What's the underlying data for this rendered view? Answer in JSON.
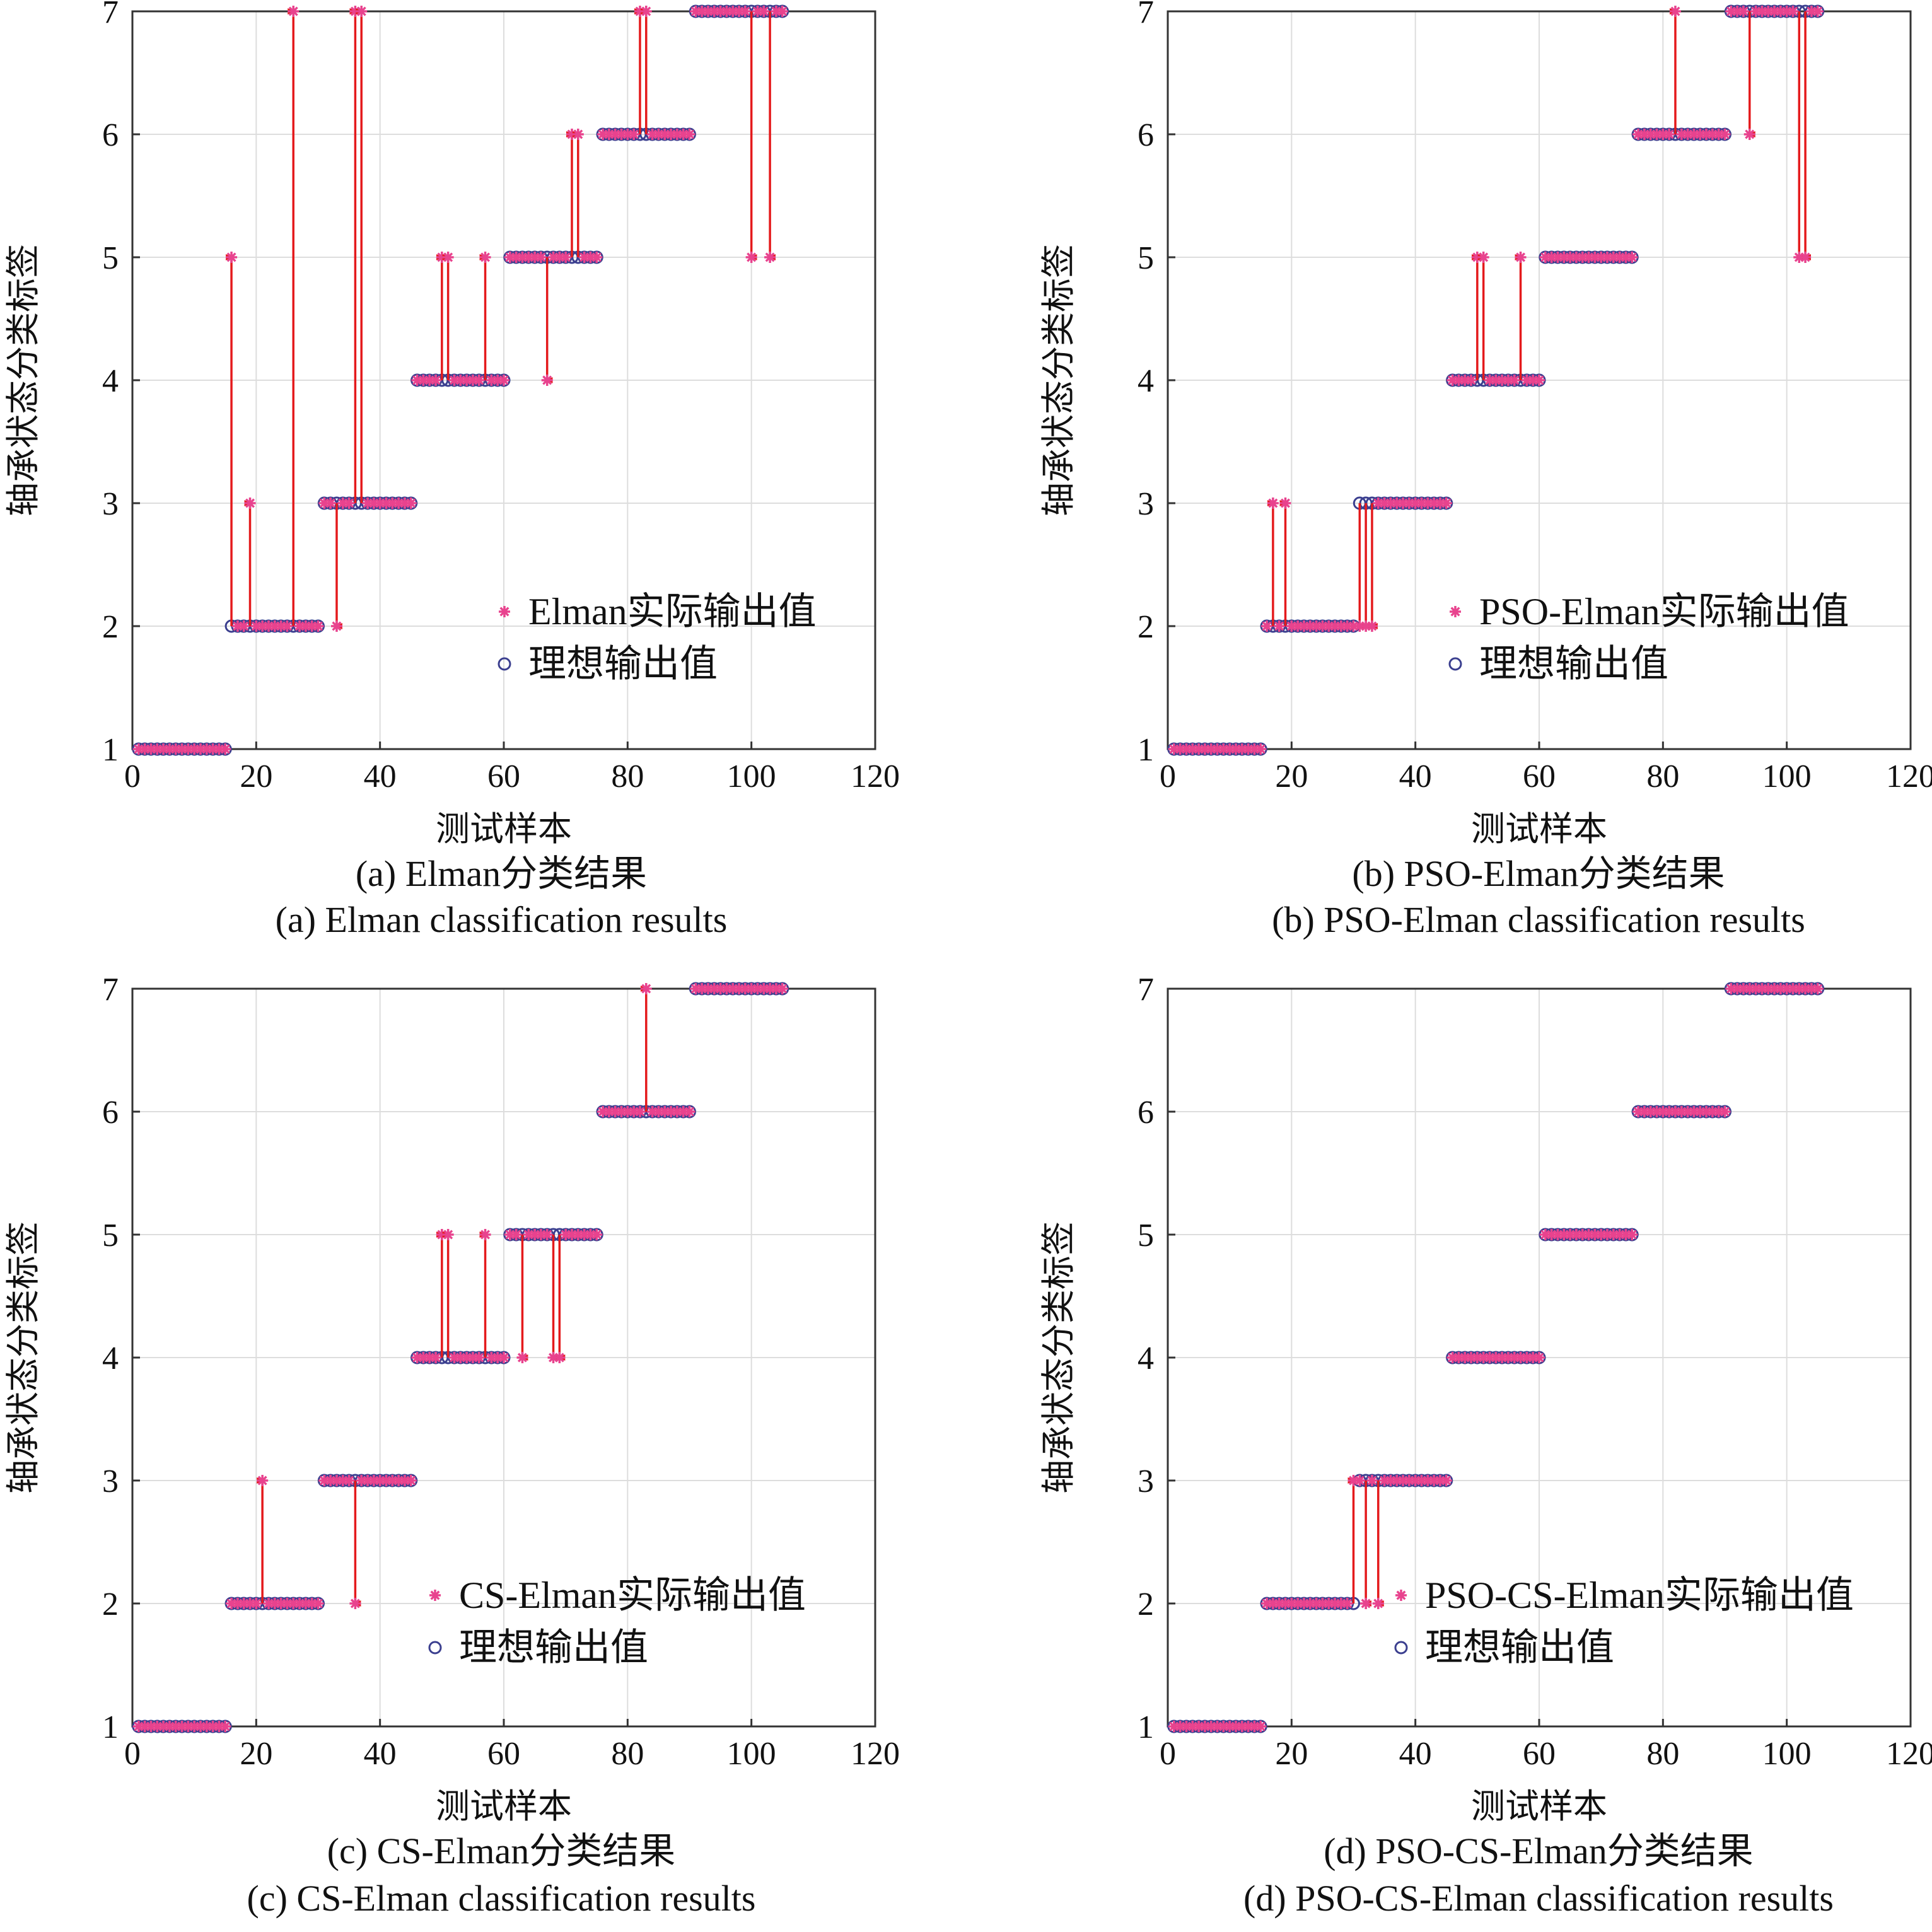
{
  "chart_data": [
    {
      "type": "scatter",
      "panel": "a",
      "xlabel": "测试样本",
      "ylabel": "轴承状态分类标签",
      "xlim": [
        0,
        120
      ],
      "ylim": [
        1,
        7
      ],
      "xticks": [
        "0",
        "20",
        "40",
        "60",
        "80",
        "100",
        "120"
      ],
      "yticks": [
        "1",
        "2",
        "3",
        "4",
        "5",
        "6",
        "7"
      ],
      "grid": true,
      "legend_position": "bottom-right",
      "legend": [
        "Elman实际输出值",
        "理想输出值"
      ],
      "caption_cn": "(a)  Elman分类结果",
      "caption_en": "(a)  Elman classification results",
      "ideal_segments": [
        {
          "from": 1,
          "to": 15,
          "label": 1
        },
        {
          "from": 16,
          "to": 30,
          "label": 2
        },
        {
          "from": 31,
          "to": 45,
          "label": 3
        },
        {
          "from": 46,
          "to": 60,
          "label": 4
        },
        {
          "from": 61,
          "to": 75,
          "label": 5
        },
        {
          "from": 76,
          "to": 90,
          "label": 6
        },
        {
          "from": 91,
          "to": 105,
          "label": 7
        }
      ],
      "misclassified": [
        {
          "x": 16,
          "ideal": 2,
          "actual": 5
        },
        {
          "x": 19,
          "ideal": 2,
          "actual": 3
        },
        {
          "x": 26,
          "ideal": 2,
          "actual": 7
        },
        {
          "x": 33,
          "ideal": 3,
          "actual": 2
        },
        {
          "x": 36,
          "ideal": 3,
          "actual": 7
        },
        {
          "x": 37,
          "ideal": 3,
          "actual": 7
        },
        {
          "x": 50,
          "ideal": 4,
          "actual": 5
        },
        {
          "x": 51,
          "ideal": 4,
          "actual": 5
        },
        {
          "x": 57,
          "ideal": 4,
          "actual": 5
        },
        {
          "x": 67,
          "ideal": 5,
          "actual": 4
        },
        {
          "x": 71,
          "ideal": 5,
          "actual": 6
        },
        {
          "x": 72,
          "ideal": 5,
          "actual": 6
        },
        {
          "x": 82,
          "ideal": 6,
          "actual": 7
        },
        {
          "x": 83,
          "ideal": 6,
          "actual": 7
        },
        {
          "x": 100,
          "ideal": 7,
          "actual": 5
        },
        {
          "x": 103,
          "ideal": 7,
          "actual": 5
        }
      ]
    },
    {
      "type": "scatter",
      "panel": "b",
      "xlabel": "测试样本",
      "ylabel": "轴承状态分类标签",
      "xlim": [
        0,
        120
      ],
      "ylim": [
        1,
        7
      ],
      "xticks": [
        "0",
        "20",
        "40",
        "60",
        "80",
        "100",
        "120"
      ],
      "yticks": [
        "1",
        "2",
        "3",
        "4",
        "5",
        "6",
        "7"
      ],
      "grid": true,
      "legend_position": "bottom-right",
      "legend": [
        "PSO-Elman实际输出值",
        "理想输出值"
      ],
      "caption_cn": "(b)  PSO-Elman分类结果",
      "caption_en": "(b)  PSO-Elman classification results",
      "ideal_segments": [
        {
          "from": 1,
          "to": 15,
          "label": 1
        },
        {
          "from": 16,
          "to": 30,
          "label": 2
        },
        {
          "from": 31,
          "to": 45,
          "label": 3
        },
        {
          "from": 46,
          "to": 60,
          "label": 4
        },
        {
          "from": 61,
          "to": 75,
          "label": 5
        },
        {
          "from": 76,
          "to": 90,
          "label": 6
        },
        {
          "from": 91,
          "to": 105,
          "label": 7
        }
      ],
      "misclassified": [
        {
          "x": 17,
          "ideal": 2,
          "actual": 3
        },
        {
          "x": 19,
          "ideal": 2,
          "actual": 3
        },
        {
          "x": 31,
          "ideal": 3,
          "actual": 2
        },
        {
          "x": 32,
          "ideal": 3,
          "actual": 2
        },
        {
          "x": 33,
          "ideal": 3,
          "actual": 2
        },
        {
          "x": 50,
          "ideal": 4,
          "actual": 5
        },
        {
          "x": 51,
          "ideal": 4,
          "actual": 5
        },
        {
          "x": 57,
          "ideal": 4,
          "actual": 5
        },
        {
          "x": 82,
          "ideal": 6,
          "actual": 7
        },
        {
          "x": 94,
          "ideal": 7,
          "actual": 6
        },
        {
          "x": 102,
          "ideal": 7,
          "actual": 5
        },
        {
          "x": 103,
          "ideal": 7,
          "actual": 5
        }
      ]
    },
    {
      "type": "scatter",
      "panel": "c",
      "xlabel": "测试样本",
      "ylabel": "轴承状态分类标签",
      "xlim": [
        0,
        120
      ],
      "ylim": [
        1,
        7
      ],
      "xticks": [
        "0",
        "20",
        "40",
        "60",
        "80",
        "100",
        "120"
      ],
      "yticks": [
        "1",
        "2",
        "3",
        "4",
        "5",
        "6",
        "7"
      ],
      "grid": true,
      "legend_position": "bottom-right",
      "legend": [
        "CS-Elman实际输出值",
        "理想输出值"
      ],
      "caption_cn": "(c)  CS-Elman分类结果",
      "caption_en": "(c)  CS-Elman classification results",
      "ideal_segments": [
        {
          "from": 1,
          "to": 15,
          "label": 1
        },
        {
          "from": 16,
          "to": 30,
          "label": 2
        },
        {
          "from": 31,
          "to": 45,
          "label": 3
        },
        {
          "from": 46,
          "to": 60,
          "label": 4
        },
        {
          "from": 61,
          "to": 75,
          "label": 5
        },
        {
          "from": 76,
          "to": 90,
          "label": 6
        },
        {
          "from": 91,
          "to": 105,
          "label": 7
        }
      ],
      "misclassified": [
        {
          "x": 21,
          "ideal": 2,
          "actual": 3
        },
        {
          "x": 36,
          "ideal": 3,
          "actual": 2
        },
        {
          "x": 50,
          "ideal": 4,
          "actual": 5
        },
        {
          "x": 51,
          "ideal": 4,
          "actual": 5
        },
        {
          "x": 57,
          "ideal": 4,
          "actual": 5
        },
        {
          "x": 63,
          "ideal": 5,
          "actual": 4
        },
        {
          "x": 68,
          "ideal": 5,
          "actual": 4
        },
        {
          "x": 69,
          "ideal": 5,
          "actual": 4
        },
        {
          "x": 83,
          "ideal": 6,
          "actual": 7
        }
      ]
    },
    {
      "type": "scatter",
      "panel": "d",
      "xlabel": "测试样本",
      "ylabel": "轴承状态分类标签",
      "xlim": [
        0,
        120
      ],
      "ylim": [
        1,
        7
      ],
      "xticks": [
        "0",
        "20",
        "40",
        "60",
        "80",
        "100",
        "120"
      ],
      "yticks": [
        "1",
        "2",
        "3",
        "4",
        "5",
        "6",
        "7"
      ],
      "grid": true,
      "legend_position": "bottom-right",
      "legend": [
        "PSO-CS-Elman实际输出值",
        "理想输出值"
      ],
      "caption_cn": "(d)  PSO-CS-Elman分类结果",
      "caption_en": "(d)  PSO-CS-Elman classification results",
      "ideal_segments": [
        {
          "from": 1,
          "to": 15,
          "label": 1
        },
        {
          "from": 16,
          "to": 30,
          "label": 2
        },
        {
          "from": 31,
          "to": 45,
          "label": 3
        },
        {
          "from": 46,
          "to": 60,
          "label": 4
        },
        {
          "from": 61,
          "to": 75,
          "label": 5
        },
        {
          "from": 76,
          "to": 90,
          "label": 6
        },
        {
          "from": 91,
          "to": 105,
          "label": 7
        }
      ],
      "misclassified": [
        {
          "x": 30,
          "ideal": 2,
          "actual": 3
        },
        {
          "x": 32,
          "ideal": 3,
          "actual": 2
        },
        {
          "x": 34,
          "ideal": 3,
          "actual": 2
        }
      ]
    }
  ],
  "colors": {
    "actual_marker": "#e8438e",
    "ideal_marker": "#3b3f8f",
    "arrow": "#e41a1c",
    "grid": "#dddddd",
    "axis": "#333333"
  },
  "markers": {
    "actual": "asterisk",
    "ideal": "circle"
  }
}
